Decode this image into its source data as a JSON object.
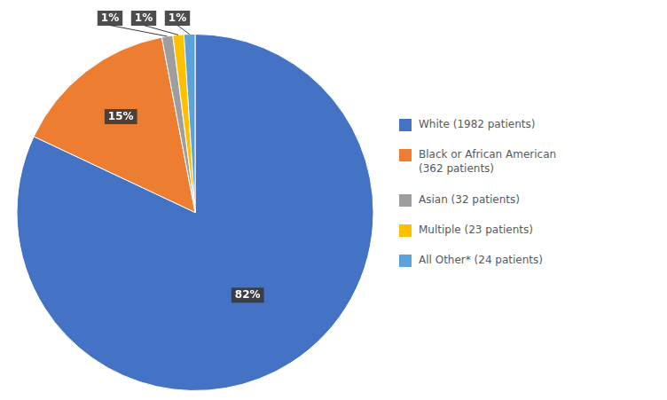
{
  "chart_data": {
    "type": "pie",
    "categories": [
      "White (1982 patients)",
      "Black or African American\n(362 patients)",
      "Asian (32 patients)",
      "Multiple (23 patients)",
      "All Other* (24 patients)"
    ],
    "values": [
      82,
      15,
      1,
      1,
      1
    ],
    "value_labels": [
      "82%",
      "15%",
      "1%",
      "1%",
      "1%"
    ],
    "colors": [
      "#4472C4",
      "#ED7D31",
      "#9E9E9E",
      "#FFC000",
      "#5BA3D9"
    ],
    "data_labels": true,
    "legend": "right"
  }
}
